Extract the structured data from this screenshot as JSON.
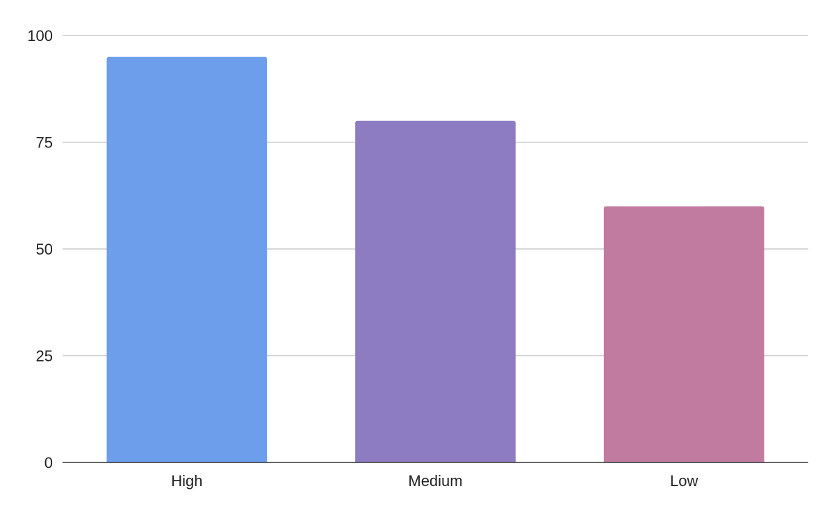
{
  "chart_data": {
    "type": "bar",
    "categories": [
      "High",
      "Medium",
      "Low"
    ],
    "values": [
      95,
      80,
      60
    ],
    "colors": [
      "#6d9eeb",
      "#8e7cc3",
      "#c27ba0"
    ],
    "ylim": [
      0,
      100
    ],
    "yticks": [
      0,
      25,
      50,
      75,
      100
    ],
    "grid": true,
    "legend": "none",
    "title": "",
    "xlabel": "",
    "ylabel": ""
  }
}
